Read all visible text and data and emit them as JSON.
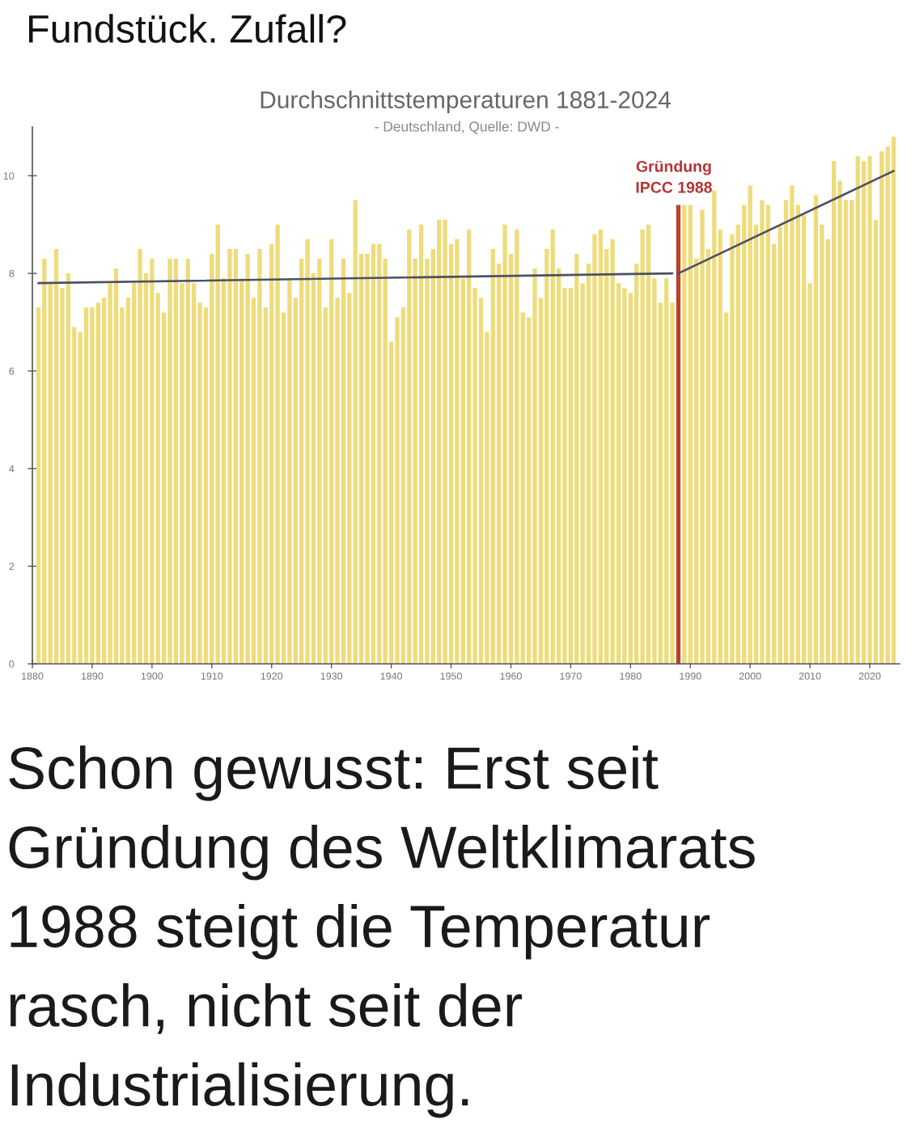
{
  "chart_data": {
    "type": "bar",
    "title": "Durchschnittstemperaturen 1881-2024",
    "subtitle": "- Deutschland, Quelle: DWD -",
    "annotations": [
      "Fundstück. Zufall?",
      "Schon gewusst: Erst seit\nGründung des Weltklimarats\n1988 steigt die Temperatur\nrasch, nicht seit der\nIndustrialisierung.",
      {
        "text": "Gründung\nIPCC 1988",
        "x": 1988,
        "y": 9.4
      }
    ],
    "x": [
      1881,
      1882,
      1883,
      1884,
      1885,
      1886,
      1887,
      1888,
      1889,
      1890,
      1891,
      1892,
      1893,
      1894,
      1895,
      1896,
      1897,
      1898,
      1899,
      1900,
      1901,
      1902,
      1903,
      1904,
      1905,
      1906,
      1907,
      1908,
      1909,
      1910,
      1911,
      1912,
      1913,
      1914,
      1915,
      1916,
      1917,
      1918,
      1919,
      1920,
      1921,
      1922,
      1923,
      1924,
      1925,
      1926,
      1927,
      1928,
      1929,
      1930,
      1931,
      1932,
      1933,
      1934,
      1935,
      1936,
      1937,
      1938,
      1939,
      1940,
      1941,
      1942,
      1943,
      1944,
      1945,
      1946,
      1947,
      1948,
      1949,
      1950,
      1951,
      1952,
      1953,
      1954,
      1955,
      1956,
      1957,
      1958,
      1959,
      1960,
      1961,
      1962,
      1963,
      1964,
      1965,
      1966,
      1967,
      1968,
      1969,
      1970,
      1971,
      1972,
      1973,
      1974,
      1975,
      1976,
      1977,
      1978,
      1979,
      1980,
      1981,
      1982,
      1983,
      1984,
      1985,
      1986,
      1987,
      1988,
      1989,
      1990,
      1991,
      1992,
      1993,
      1994,
      1995,
      1996,
      1997,
      1998,
      1999,
      2000,
      2001,
      2002,
      2003,
      2004,
      2005,
      2006,
      2007,
      2008,
      2009,
      2010,
      2011,
      2012,
      2013,
      2014,
      2015,
      2016,
      2017,
      2018,
      2019,
      2020,
      2021,
      2022,
      2023,
      2024
    ],
    "series": [
      {
        "values": [
          7.3,
          8.3,
          7.8,
          8.5,
          7.7,
          8.0,
          6.9,
          6.8,
          7.3,
          7.3,
          7.4,
          7.5,
          7.8,
          8.1,
          7.3,
          7.5,
          7.8,
          8.5,
          8.0,
          8.3,
          7.6,
          7.2,
          8.3,
          8.3,
          7.8,
          8.3,
          7.8,
          7.4,
          7.3,
          8.4,
          9.0,
          7.9,
          8.5,
          8.5,
          7.9,
          8.4,
          7.5,
          8.5,
          7.3,
          8.6,
          9.0,
          7.2,
          7.9,
          7.5,
          8.3,
          8.7,
          8.0,
          8.3,
          7.3,
          8.7,
          7.5,
          8.3,
          7.6,
          9.5,
          8.4,
          8.4,
          8.6,
          8.6,
          8.3,
          6.6,
          7.1,
          7.3,
          8.9,
          8.3,
          9.0,
          8.3,
          8.5,
          9.1,
          9.1,
          8.6,
          8.7,
          7.9,
          8.9,
          7.7,
          7.5,
          6.8,
          8.5,
          8.2,
          9.0,
          8.4,
          8.9,
          7.2,
          7.1,
          8.1,
          7.5,
          8.5,
          8.9,
          8.1,
          7.7,
          7.7,
          8.4,
          7.8,
          8.2,
          8.8,
          8.9,
          8.5,
          8.7,
          7.8,
          7.7,
          7.6,
          8.2,
          8.9,
          9.0,
          7.9,
          7.4,
          7.9,
          7.4,
          9.4,
          9.4,
          9.4,
          8.3,
          9.3,
          8.5,
          9.7,
          8.9,
          7.2,
          8.8,
          9.0,
          9.4,
          9.8,
          9.0,
          9.5,
          9.4,
          8.6,
          9.0,
          9.5,
          9.8,
          9.4,
          9.2,
          7.8,
          9.6,
          9.0,
          8.7,
          10.3,
          9.9,
          9.5,
          9.5,
          10.4,
          10.3,
          10.4,
          9.1,
          10.5,
          10.6,
          10.8
        ],
        "colors": [
          "#eedc7c",
          "#eedc7c",
          "#eedc7c",
          "#eedc7c",
          "#eedc7c",
          "#eedc7c",
          "#eedc7c",
          "#eedc7c",
          "#eedc7c",
          "#eedc7c",
          "#eedc7c",
          "#eedc7c",
          "#eedc7c",
          "#eedc7c",
          "#eedc7c",
          "#eedc7c",
          "#eedc7c",
          "#eedc7c",
          "#eedc7c",
          "#eedc7c",
          "#eedc7c",
          "#eedc7c",
          "#eedc7c",
          "#eedc7c",
          "#eedc7c",
          "#eedc7c",
          "#eedc7c",
          "#eedc7c",
          "#eedc7c",
          "#eedc7c",
          "#eedc7c",
          "#eedc7c",
          "#eedc7c",
          "#eedc7c",
          "#eedc7c",
          "#eedc7c",
          "#eedc7c",
          "#eedc7c",
          "#eedc7c",
          "#eedc7c",
          "#eedc7c",
          "#eedc7c",
          "#eedc7c",
          "#eedc7c",
          "#eedc7c",
          "#eedc7c",
          "#eedc7c",
          "#eedc7c",
          "#eedc7c",
          "#eedc7c",
          "#eedc7c",
          "#eedc7c",
          "#eedc7c",
          "#eedc7c",
          "#eedc7c",
          "#eedc7c",
          "#eedc7c",
          "#eedc7c",
          "#eedc7c",
          "#eedc7c",
          "#eedc7c",
          "#eedc7c",
          "#eedc7c",
          "#eedc7c",
          "#eedc7c",
          "#eedc7c",
          "#eedc7c",
          "#eedc7c",
          "#eedc7c",
          "#eedc7c",
          "#eedc7c",
          "#eedc7c",
          "#eedc7c",
          "#eedc7c",
          "#eedc7c",
          "#eedc7c",
          "#eedc7c",
          "#eedc7c",
          "#eedc7c",
          "#eedc7c",
          "#eedc7c",
          "#eedc7c",
          "#eedc7c",
          "#eedc7c",
          "#eedc7c",
          "#eedc7c",
          "#eedc7c",
          "#eedc7c",
          "#eedc7c",
          "#eedc7c",
          "#eedc7c",
          "#eedc7c",
          "#eedc7c",
          "#eedc7c",
          "#eedc7c",
          "#eedc7c",
          "#eedc7c",
          "#eedc7c",
          "#eedc7c",
          "#eedc7c",
          "#eedc7c",
          "#eedc7c",
          "#eedc7c",
          "#eedc7c",
          "#eedc7c",
          "#eedc7c",
          "#eedc7c",
          "#b8432a",
          "#eedc7c",
          "#eedc7c",
          "#eedc7c",
          "#eedc7c",
          "#eedc7c",
          "#eedc7c",
          "#eedc7c",
          "#eedc7c",
          "#eedc7c",
          "#eedc7c",
          "#eedc7c",
          "#eedc7c",
          "#eedc7c",
          "#eedc7c",
          "#eedc7c",
          "#eedc7c",
          "#eedc7c",
          "#eedc7c",
          "#eedc7c",
          "#eedc7c",
          "#eedc7c",
          "#eedc7c",
          "#eedc7c",
          "#eedc7c",
          "#eedc7c",
          "#eedc7c",
          "#eedc7c",
          "#eedc7c",
          "#eedc7c",
          "#eedc7c",
          "#eedc7c",
          "#eedc7c",
          "#eedc7c",
          "#eedc7c",
          "#eedc7c",
          "#eedc7c"
        ]
      },
      {
        "type": "line",
        "x": [
          1881,
          1987
        ],
        "values": [
          7.8,
          8.0
        ],
        "color": "#4b5064"
      },
      {
        "type": "line",
        "x": [
          1988,
          2024
        ],
        "values": [
          8.0,
          10.1
        ],
        "color": "#4b5064"
      }
    ],
    "xlim": [
      1880,
      2025
    ],
    "xticks": [
      1880,
      1890,
      1900,
      1910,
      1920,
      1930,
      1940,
      1950,
      1960,
      1970,
      1980,
      1990,
      2000,
      2010,
      2020
    ],
    "ylim": [
      0,
      11
    ],
    "yticks": [
      0,
      2,
      4,
      6,
      8,
      10
    ],
    "grid": false
  }
}
